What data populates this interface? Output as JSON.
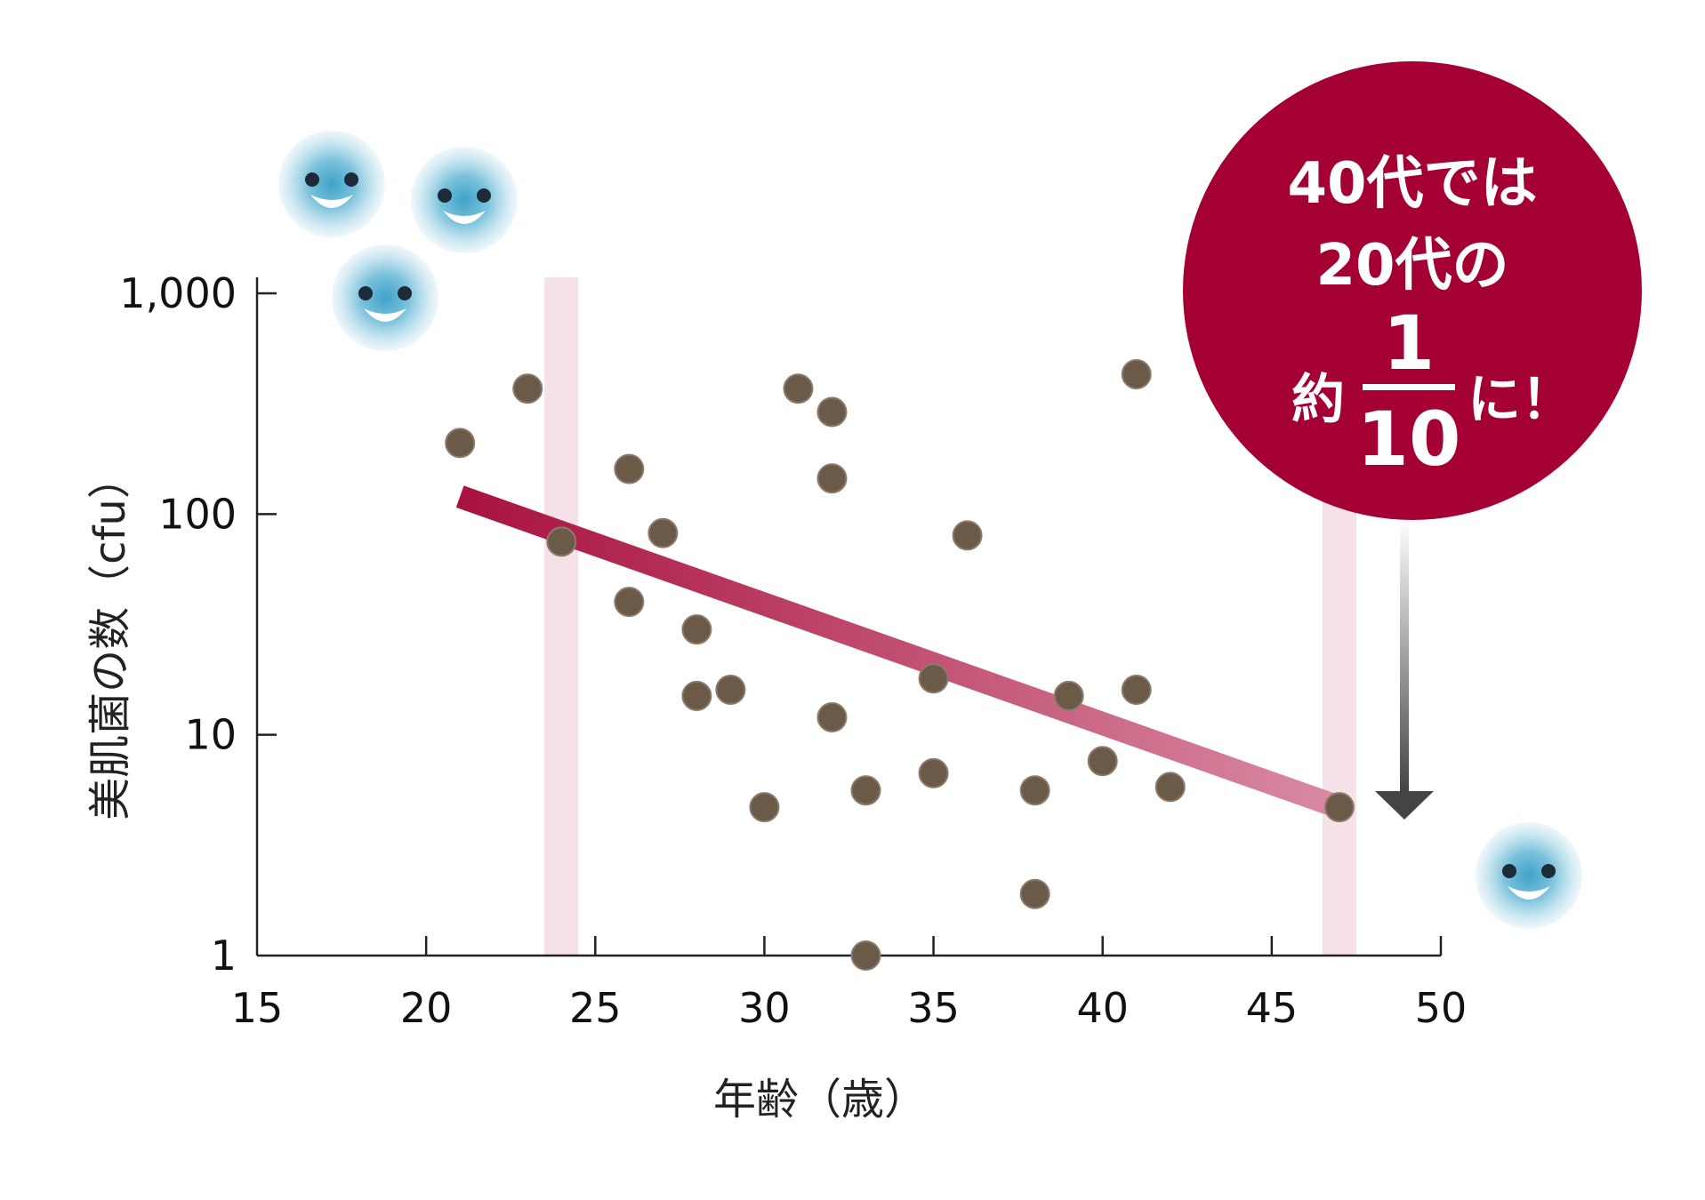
{
  "chart_data": {
    "type": "scatter",
    "xlabel": "年齢（歳）",
    "ylabel": "美肌菌の数（cfu）",
    "xlim": [
      15,
      50
    ],
    "ylim": [
      1,
      1000
    ],
    "y_scale": "log",
    "x_ticks": [
      15,
      20,
      25,
      30,
      35,
      40,
      45,
      50
    ],
    "x_tick_labels": [
      "15",
      "20",
      "25",
      "30",
      "35",
      "40",
      "45",
      "50"
    ],
    "y_ticks": [
      1,
      10,
      100,
      1000
    ],
    "y_tick_labels": [
      "1",
      "10",
      "100",
      "1,000"
    ],
    "points": [
      {
        "x": 21,
        "y": 210
      },
      {
        "x": 23,
        "y": 370
      },
      {
        "x": 24,
        "y": 75
      },
      {
        "x": 26,
        "y": 160
      },
      {
        "x": 26,
        "y": 40
      },
      {
        "x": 27,
        "y": 82
      },
      {
        "x": 28,
        "y": 30
      },
      {
        "x": 28,
        "y": 15
      },
      {
        "x": 29,
        "y": 16
      },
      {
        "x": 30,
        "y": 4.7
      },
      {
        "x": 31,
        "y": 370
      },
      {
        "x": 32,
        "y": 290
      },
      {
        "x": 32,
        "y": 145
      },
      {
        "x": 32,
        "y": 12
      },
      {
        "x": 33,
        "y": 5.6
      },
      {
        "x": 33,
        "y": 1
      },
      {
        "x": 35,
        "y": 18
      },
      {
        "x": 35,
        "y": 6.7
      },
      {
        "x": 36,
        "y": 80
      },
      {
        "x": 38,
        "y": 5.6
      },
      {
        "x": 38,
        "y": 1.9
      },
      {
        "x": 39,
        "y": 15
      },
      {
        "x": 40,
        "y": 7.6
      },
      {
        "x": 41,
        "y": 430
      },
      {
        "x": 41,
        "y": 16
      },
      {
        "x": 42,
        "y": 5.8
      },
      {
        "x": 47,
        "y": 4.7
      }
    ],
    "trend_line": {
      "x": [
        21,
        47
      ],
      "y": [
        120,
        4.7
      ]
    },
    "highlight_bands": [
      {
        "x": 24
      },
      {
        "x": 47
      }
    ],
    "colors": {
      "point": "#6b5a48",
      "trend_start": "#a8123f",
      "trend_end": "#d98ba3",
      "band": "#f5e1e7",
      "callout": "#a50034",
      "arrow": "#444444",
      "face": "#6bb8d6"
    }
  },
  "callout": {
    "line1": "40代では",
    "line2": "20代の",
    "prefix": "約",
    "numerator": "1",
    "denominator": "10",
    "suffix": "に！"
  },
  "icons": [
    "smiley-face-icon",
    "smiley-face-icon",
    "smiley-face-icon",
    "smiley-face-icon"
  ]
}
